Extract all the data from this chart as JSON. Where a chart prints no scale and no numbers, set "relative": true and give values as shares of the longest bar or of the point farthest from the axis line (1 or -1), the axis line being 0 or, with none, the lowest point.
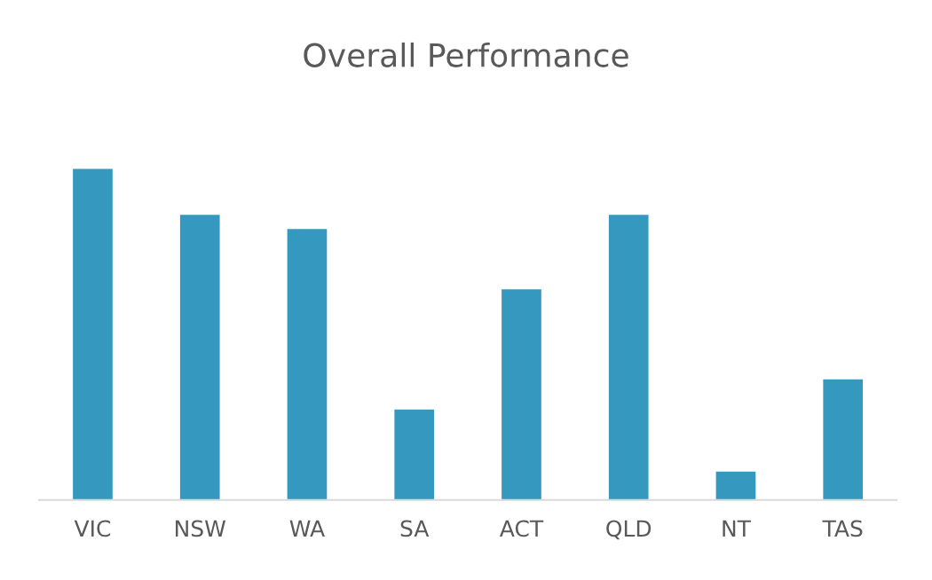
{
  "chart_data": {
    "type": "bar",
    "title": "Overall Performance",
    "relative": true,
    "categories": [
      "VIC",
      "NSW",
      "WA",
      "SA",
      "ACT",
      "QLD",
      "NT",
      "TAS"
    ],
    "values": [
      1,
      0.861,
      0.818,
      0.273,
      0.636,
      0.861,
      0.086,
      0.364
    ],
    "color": "#3598bf",
    "grid": false,
    "legend": false
  }
}
